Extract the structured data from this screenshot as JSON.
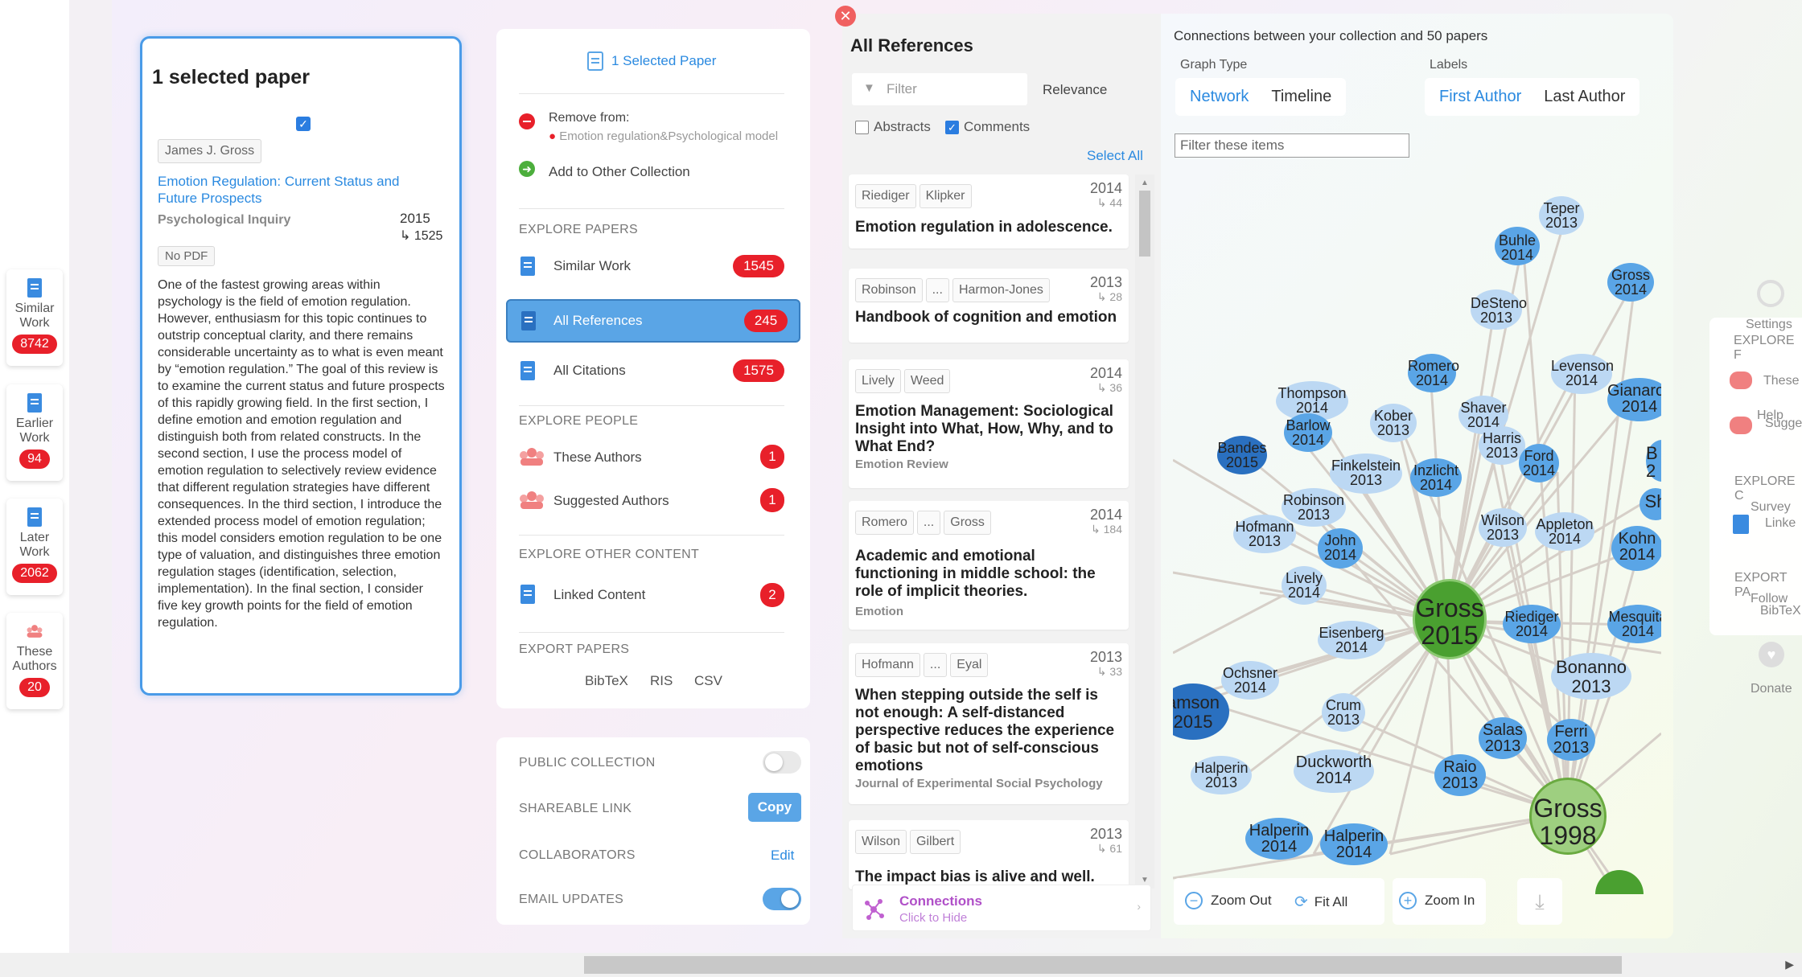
{
  "left_nav": [
    {
      "label": "Similar Work",
      "count": "8742"
    },
    {
      "label": "Earlier Work",
      "count": "94"
    },
    {
      "label": "Later Work",
      "count": "2062"
    },
    {
      "label": "These Authors",
      "count": "20"
    }
  ],
  "selected": {
    "title": "1 selected paper",
    "author": "James J. Gross",
    "paper_title": "Emotion Regulation: Current Status and Future Prospects",
    "journal": "Psychological Inquiry",
    "year": "2015",
    "citations": "↳ 1525",
    "pdf": "No PDF",
    "abstract": "One of the fastest growing areas within psychology is the field of emotion regulation. However, enthusiasm for this topic continues to outstrip conceptual clarity, and there remains considerable uncertainty as to what is even meant by “emotion regulation.” The goal of this review is to examine the current status and future prospects of this rapidly growing field. In the first section, I define emotion and emotion regulation and distinguish both from related constructs. In the second section, I use the process model of emotion regulation to selectively review evidence that different regulation strategies have different consequences. In the third section, I introduce the extended process model of emotion regulation; this model considers emotion regulation to be one type of valuation, and distinguishes three emotion regulation stages (identification, selection, implementation). In the final section, I consider five key growth points for the field of emotion regulation."
  },
  "menu": {
    "header": "1 Selected Paper",
    "remove_label": "Remove from:",
    "remove_collection": "Emotion regulation&Psychological model",
    "add_label": "Add to Other Collection",
    "explore_papers": "EXPLORE PAPERS",
    "similar": "Similar Work",
    "similar_count": "1545",
    "allrefs": "All References",
    "allrefs_count": "245",
    "allcites": "All Citations",
    "allcites_count": "1575",
    "explore_people": "EXPLORE PEOPLE",
    "these_authors": "These Authors",
    "these_count": "1",
    "suggested": "Suggested Authors",
    "suggested_count": "1",
    "explore_other": "EXPLORE OTHER CONTENT",
    "linked": "Linked Content",
    "linked_count": "2",
    "export": "EXPORT PAPERS",
    "bibtex": "BibTeX",
    "ris": "RIS",
    "csv": "CSV",
    "public": "PUBLIC COLLECTION",
    "shareable": "SHAREABLE LINK",
    "copy": "Copy",
    "collaborators": "COLLABORATORS",
    "edit": "Edit",
    "email": "EMAIL UPDATES"
  },
  "refs": {
    "title": "All References",
    "filter_placeholder": "Filter",
    "sort": "Relevance",
    "abstracts": "Abstracts",
    "comments": "Comments",
    "select_all": "Select All",
    "items": [
      {
        "authors": [
          "Riediger",
          "Klipker"
        ],
        "year": "2014",
        "cites": "↳ 44",
        "title": "Emotion regulation in adolescence.",
        "journal": ""
      },
      {
        "authors": [
          "Robinson",
          "...",
          "Harmon-Jones"
        ],
        "year": "2013",
        "cites": "↳ 28",
        "title": "Handbook of cognition and emotion",
        "journal": ""
      },
      {
        "authors": [
          "Lively",
          "Weed"
        ],
        "year": "2014",
        "cites": "↳ 36",
        "title": "Emotion Management: Sociological Insight into What, How, Why, and to What End?",
        "journal": "Emotion Review"
      },
      {
        "authors": [
          "Romero",
          "...",
          "Gross"
        ],
        "year": "2014",
        "cites": "↳ 184",
        "title": "Academic and emotional functioning in middle school: the role of implicit theories.",
        "journal": "Emotion"
      },
      {
        "authors": [
          "Hofmann",
          "...",
          "Eyal"
        ],
        "year": "2013",
        "cites": "↳ 33",
        "title": "When stepping outside the self is not enough: A self-distanced perspective reduces the experience of basic but not of self-conscious emotions",
        "journal": "Journal of Experimental Social Psychology"
      },
      {
        "authors": [
          "Wilson",
          "Gilbert"
        ],
        "year": "2013",
        "cites": "↳ 61",
        "title": "The impact bias is alive and well.",
        "journal": ""
      }
    ],
    "connections": "Connections",
    "connections_sub": "Click to Hide"
  },
  "graph": {
    "header": "Connections between your collection and 50 papers",
    "graph_type": "Graph Type",
    "network": "Network",
    "timeline": "Timeline",
    "labels": "Labels",
    "first_author": "First Author",
    "last_author": "Last Author",
    "filter_placeholder": "Filter these items",
    "zoom_out": "Zoom Out",
    "fit_all": "Fit All",
    "zoom_in": "Zoom In",
    "colors": {
      "blue": "#5aa5e6",
      "light": "#bcd8f3",
      "green": "#4aa030"
    }
  },
  "right_panel": {
    "settings": "Settings",
    "explore": "EXPLORE F",
    "these": "These",
    "help": "Help",
    "sugge": "Sugge",
    "explore2": "EXPLORE C",
    "survey": "Survey",
    "linke": "Linke",
    "export": "EXPORT PA",
    "follow": "Follow",
    "bibtex": "BibTeX",
    "donate": "Donate"
  }
}
